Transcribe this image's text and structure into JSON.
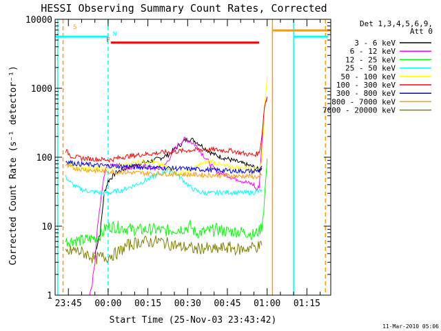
{
  "chart_data": {
    "type": "line",
    "title": "HESSI Observing Summary Count Rates, Corrected",
    "xlabel": "Start Time (25-Nov-03 23:43:42)",
    "ylabel": "Corrected Count Rate (s⁻¹ detector⁻¹)",
    "y_scale": "log",
    "ylim": [
      1,
      10000
    ],
    "xlim_minutes": [
      -5,
      99
    ],
    "x_ticks": [
      {
        "m": 0,
        "label": "23:45"
      },
      {
        "m": 15,
        "label": "00:00"
      },
      {
        "m": 30,
        "label": "00:15"
      },
      {
        "m": 45,
        "label": "00:30"
      },
      {
        "m": 60,
        "label": "00:45"
      },
      {
        "m": 75,
        "label": "01:00"
      },
      {
        "m": 90,
        "label": "01:15"
      }
    ],
    "y_ticks": [
      {
        "v": 1,
        "label": "1"
      },
      {
        "v": 10,
        "label": "10"
      },
      {
        "v": 100,
        "label": "100"
      },
      {
        "v": 1000,
        "label": "1000"
      },
      {
        "v": 10000,
        "label": "10000"
      }
    ],
    "legend": {
      "placement": "right",
      "header": [
        "Det 1,3,4,5,6,9,",
        "Att 0"
      ]
    },
    "series": [
      {
        "name": "3 - 6 keV",
        "color": "#000000",
        "points": [
          [
            10,
            4
          ],
          [
            12,
            8
          ],
          [
            13.5,
            30
          ],
          [
            15,
            45
          ],
          [
            18,
            60
          ],
          [
            22,
            70
          ],
          [
            26,
            80
          ],
          [
            30,
            85
          ],
          [
            34,
            95
          ],
          [
            38,
            110
          ],
          [
            40,
            130
          ],
          [
            42,
            150
          ],
          [
            44,
            175
          ],
          [
            46,
            185
          ],
          [
            48,
            170
          ],
          [
            50,
            150
          ],
          [
            52,
            130
          ],
          [
            54,
            115
          ],
          [
            56,
            105
          ],
          [
            60,
            95
          ],
          [
            64,
            85
          ],
          [
            67,
            78
          ],
          [
            70,
            72
          ],
          [
            72,
            65
          ],
          [
            73,
            70
          ]
        ]
      },
      {
        "name": "6 - 12 keV",
        "color": "#ff00ff",
        "points": [
          [
            8,
            1
          ],
          [
            9,
            1.5
          ],
          [
            10,
            3
          ],
          [
            11,
            10
          ],
          [
            12,
            20
          ],
          [
            13,
            40
          ],
          [
            14,
            70
          ],
          [
            16,
            80
          ],
          [
            18,
            78
          ],
          [
            20,
            75
          ],
          [
            22,
            72
          ],
          [
            24,
            70
          ],
          [
            26,
            72
          ],
          [
            28,
            75
          ],
          [
            30,
            72
          ],
          [
            32,
            70
          ],
          [
            34,
            68
          ],
          [
            36,
            72
          ],
          [
            38,
            95
          ],
          [
            40,
            130
          ],
          [
            42,
            160
          ],
          [
            44,
            185
          ],
          [
            46,
            170
          ],
          [
            48,
            150
          ],
          [
            50,
            120
          ],
          [
            52,
            95
          ],
          [
            54,
            75
          ],
          [
            56,
            62
          ],
          [
            58,
            58
          ],
          [
            60,
            55
          ],
          [
            62,
            50
          ],
          [
            64,
            48
          ],
          [
            66,
            45
          ],
          [
            68,
            42
          ],
          [
            70,
            40
          ],
          [
            71,
            33
          ],
          [
            72,
            38
          ],
          [
            73,
            160
          ],
          [
            74,
            550
          ],
          [
            75,
            750
          ]
        ]
      },
      {
        "name": "12 - 25 keV",
        "color": "#00ff00",
        "points": [
          [
            -1,
            6
          ],
          [
            2,
            6.3
          ],
          [
            5,
            6.2
          ],
          [
            8,
            6.5
          ],
          [
            11,
            7
          ],
          [
            13,
            8
          ],
          [
            14,
            9.5
          ],
          [
            16,
            10
          ],
          [
            20,
            9.6
          ],
          [
            24,
            9
          ],
          [
            28,
            8.8
          ],
          [
            32,
            9
          ],
          [
            36,
            8.5
          ],
          [
            40,
            9
          ],
          [
            44,
            9.3
          ],
          [
            46,
            10
          ],
          [
            48,
            8
          ],
          [
            52,
            8.3
          ],
          [
            56,
            9
          ],
          [
            60,
            8.4
          ],
          [
            64,
            8.4
          ],
          [
            68,
            8
          ],
          [
            70,
            7.5
          ],
          [
            72,
            8.5
          ],
          [
            73,
            10
          ],
          [
            74,
            24
          ],
          [
            75,
            95
          ]
        ]
      },
      {
        "name": "25 - 50 keV",
        "color": "#00ffff",
        "points": [
          [
            -1,
            52
          ],
          [
            1,
            42
          ],
          [
            3,
            37
          ],
          [
            5,
            34
          ],
          [
            8,
            32
          ],
          [
            11,
            31
          ],
          [
            13,
            30
          ],
          [
            16,
            31
          ],
          [
            20,
            33
          ],
          [
            24,
            38
          ],
          [
            28,
            44
          ],
          [
            32,
            52
          ],
          [
            36,
            60
          ],
          [
            38,
            66
          ],
          [
            40,
            62
          ],
          [
            42,
            52
          ],
          [
            44,
            44
          ],
          [
            46,
            37
          ],
          [
            48,
            33
          ],
          [
            50,
            31
          ],
          [
            54,
            30
          ],
          [
            58,
            31
          ],
          [
            62,
            31
          ],
          [
            66,
            30.5
          ],
          [
            70,
            31
          ],
          [
            72,
            32
          ],
          [
            73,
            34
          ]
        ]
      },
      {
        "name": "50 - 100 keV",
        "color": "#ffff00",
        "points": [
          [
            -1,
            80
          ],
          [
            2,
            75
          ],
          [
            5,
            72
          ],
          [
            8,
            70
          ],
          [
            12,
            68
          ],
          [
            15,
            69
          ],
          [
            18,
            72
          ],
          [
            22,
            78
          ],
          [
            26,
            85
          ],
          [
            30,
            88
          ],
          [
            34,
            80
          ],
          [
            38,
            70
          ],
          [
            40,
            62
          ],
          [
            42,
            60
          ],
          [
            46,
            62
          ],
          [
            50,
            80
          ],
          [
            54,
            90
          ],
          [
            58,
            75
          ],
          [
            62,
            72
          ],
          [
            66,
            70
          ],
          [
            70,
            68
          ],
          [
            72,
            70
          ],
          [
            73,
            85
          ],
          [
            74,
            500
          ],
          [
            75,
            1500
          ]
        ]
      },
      {
        "name": "100 - 300 keV",
        "color": "#ff0000",
        "points": [
          [
            -1,
            125
          ],
          [
            1,
            105
          ],
          [
            3,
            100
          ],
          [
            5,
            97
          ],
          [
            8,
            95
          ],
          [
            12,
            93
          ],
          [
            16,
            92
          ],
          [
            20,
            100
          ],
          [
            24,
            105
          ],
          [
            28,
            110
          ],
          [
            32,
            113
          ],
          [
            36,
            118
          ],
          [
            40,
            120
          ],
          [
            44,
            125
          ],
          [
            48,
            128
          ],
          [
            52,
            130
          ],
          [
            56,
            128
          ],
          [
            60,
            125
          ],
          [
            62,
            124
          ],
          [
            64,
            118
          ],
          [
            66,
            114
          ],
          [
            68,
            110
          ],
          [
            70,
            108
          ],
          [
            72,
            115
          ],
          [
            73,
            200
          ],
          [
            74,
            550
          ],
          [
            75,
            750
          ]
        ]
      },
      {
        "name": "300 - 800 keV",
        "color": "#0000ff",
        "points": [
          [
            -1,
            88
          ],
          [
            2,
            82
          ],
          [
            5,
            79
          ],
          [
            8,
            78
          ],
          [
            12,
            76
          ],
          [
            16,
            75
          ],
          [
            20,
            74
          ],
          [
            24,
            73
          ],
          [
            28,
            72
          ],
          [
            32,
            71
          ],
          [
            36,
            70
          ],
          [
            40,
            69
          ],
          [
            44,
            68
          ],
          [
            48,
            67
          ],
          [
            52,
            66
          ],
          [
            56,
            65
          ],
          [
            60,
            64
          ],
          [
            64,
            63
          ],
          [
            68,
            63
          ],
          [
            70,
            62
          ],
          [
            72,
            65
          ],
          [
            73,
            75
          ]
        ]
      },
      {
        "name": "800 - 7000 keV",
        "color": "#ff9900",
        "points": [
          [
            -1,
            75
          ],
          [
            2,
            70
          ],
          [
            5,
            67
          ],
          [
            8,
            65
          ],
          [
            12,
            63
          ],
          [
            16,
            62
          ],
          [
            20,
            61
          ],
          [
            24,
            60
          ],
          [
            28,
            59
          ],
          [
            32,
            58
          ],
          [
            36,
            58
          ],
          [
            40,
            57
          ],
          [
            44,
            56
          ],
          [
            48,
            56
          ],
          [
            52,
            55
          ],
          [
            56,
            55
          ],
          [
            60,
            54
          ],
          [
            64,
            53
          ],
          [
            68,
            53
          ],
          [
            70,
            52
          ],
          [
            72,
            52
          ],
          [
            73,
            54
          ]
        ]
      },
      {
        "name": "7000 - 20000 keV",
        "color": "#808000",
        "points": [
          [
            -1,
            4
          ],
          [
            2,
            4.5
          ],
          [
            5,
            4.2
          ],
          [
            8,
            3.8
          ],
          [
            10,
            3.3
          ],
          [
            12,
            3.6
          ],
          [
            14,
            3.5
          ],
          [
            16,
            3.8
          ],
          [
            18,
            4
          ],
          [
            20,
            4.5
          ],
          [
            22,
            5.2
          ],
          [
            24,
            5.5
          ],
          [
            26,
            5.8
          ],
          [
            28,
            6
          ],
          [
            30,
            5.9
          ],
          [
            32,
            6
          ],
          [
            34,
            6.1
          ],
          [
            36,
            5.8
          ],
          [
            38,
            5.5
          ],
          [
            40,
            5.4
          ],
          [
            42,
            5
          ],
          [
            44,
            5
          ],
          [
            46,
            4.8
          ],
          [
            48,
            4.6
          ],
          [
            50,
            4.8
          ],
          [
            52,
            4.8
          ],
          [
            54,
            4.5
          ],
          [
            56,
            4.6
          ],
          [
            58,
            4.8
          ],
          [
            60,
            4.9
          ],
          [
            62,
            4.8
          ],
          [
            64,
            4.6
          ],
          [
            66,
            4.6
          ],
          [
            68,
            4.9
          ],
          [
            70,
            5
          ],
          [
            72,
            5.1
          ],
          [
            73,
            5.3
          ]
        ]
      }
    ],
    "flags": {
      "S": {
        "label": "S",
        "color": "#ff9900",
        "m": 2.5
      },
      "N": {
        "label": "N",
        "color": "#00ffff",
        "m": 17.5
      },
      "F": {
        "label": "F",
        "color": "#ff0000",
        "m": 15
      }
    },
    "bars": [
      {
        "color": "#00ffff",
        "x1": -5,
        "x2": 15,
        "y": 5600
      },
      {
        "color": "#ff0000",
        "x1": 16,
        "x2": 72,
        "y": 4600
      },
      {
        "color": "#ff9900",
        "x1": 77,
        "x2": 99,
        "y": 6900
      },
      {
        "color": "#00ffff",
        "x1": 85,
        "x2": 98,
        "y": 5600
      }
    ],
    "vlines": [
      {
        "color": "#00ffff",
        "m": -4,
        "style": "solid"
      },
      {
        "color": "#ff9900",
        "m": -2,
        "style": "dashed"
      },
      {
        "color": "#00ffff",
        "m": 15,
        "style": "dashed"
      },
      {
        "color": "#ff9900",
        "m": 77,
        "style": "solid"
      },
      {
        "color": "#00ffff",
        "m": 85,
        "style": "solid"
      },
      {
        "color": "#ff9900",
        "m": 97,
        "style": "dashed"
      }
    ]
  },
  "footer": {
    "date": "11-Mar-2010 05:06"
  }
}
